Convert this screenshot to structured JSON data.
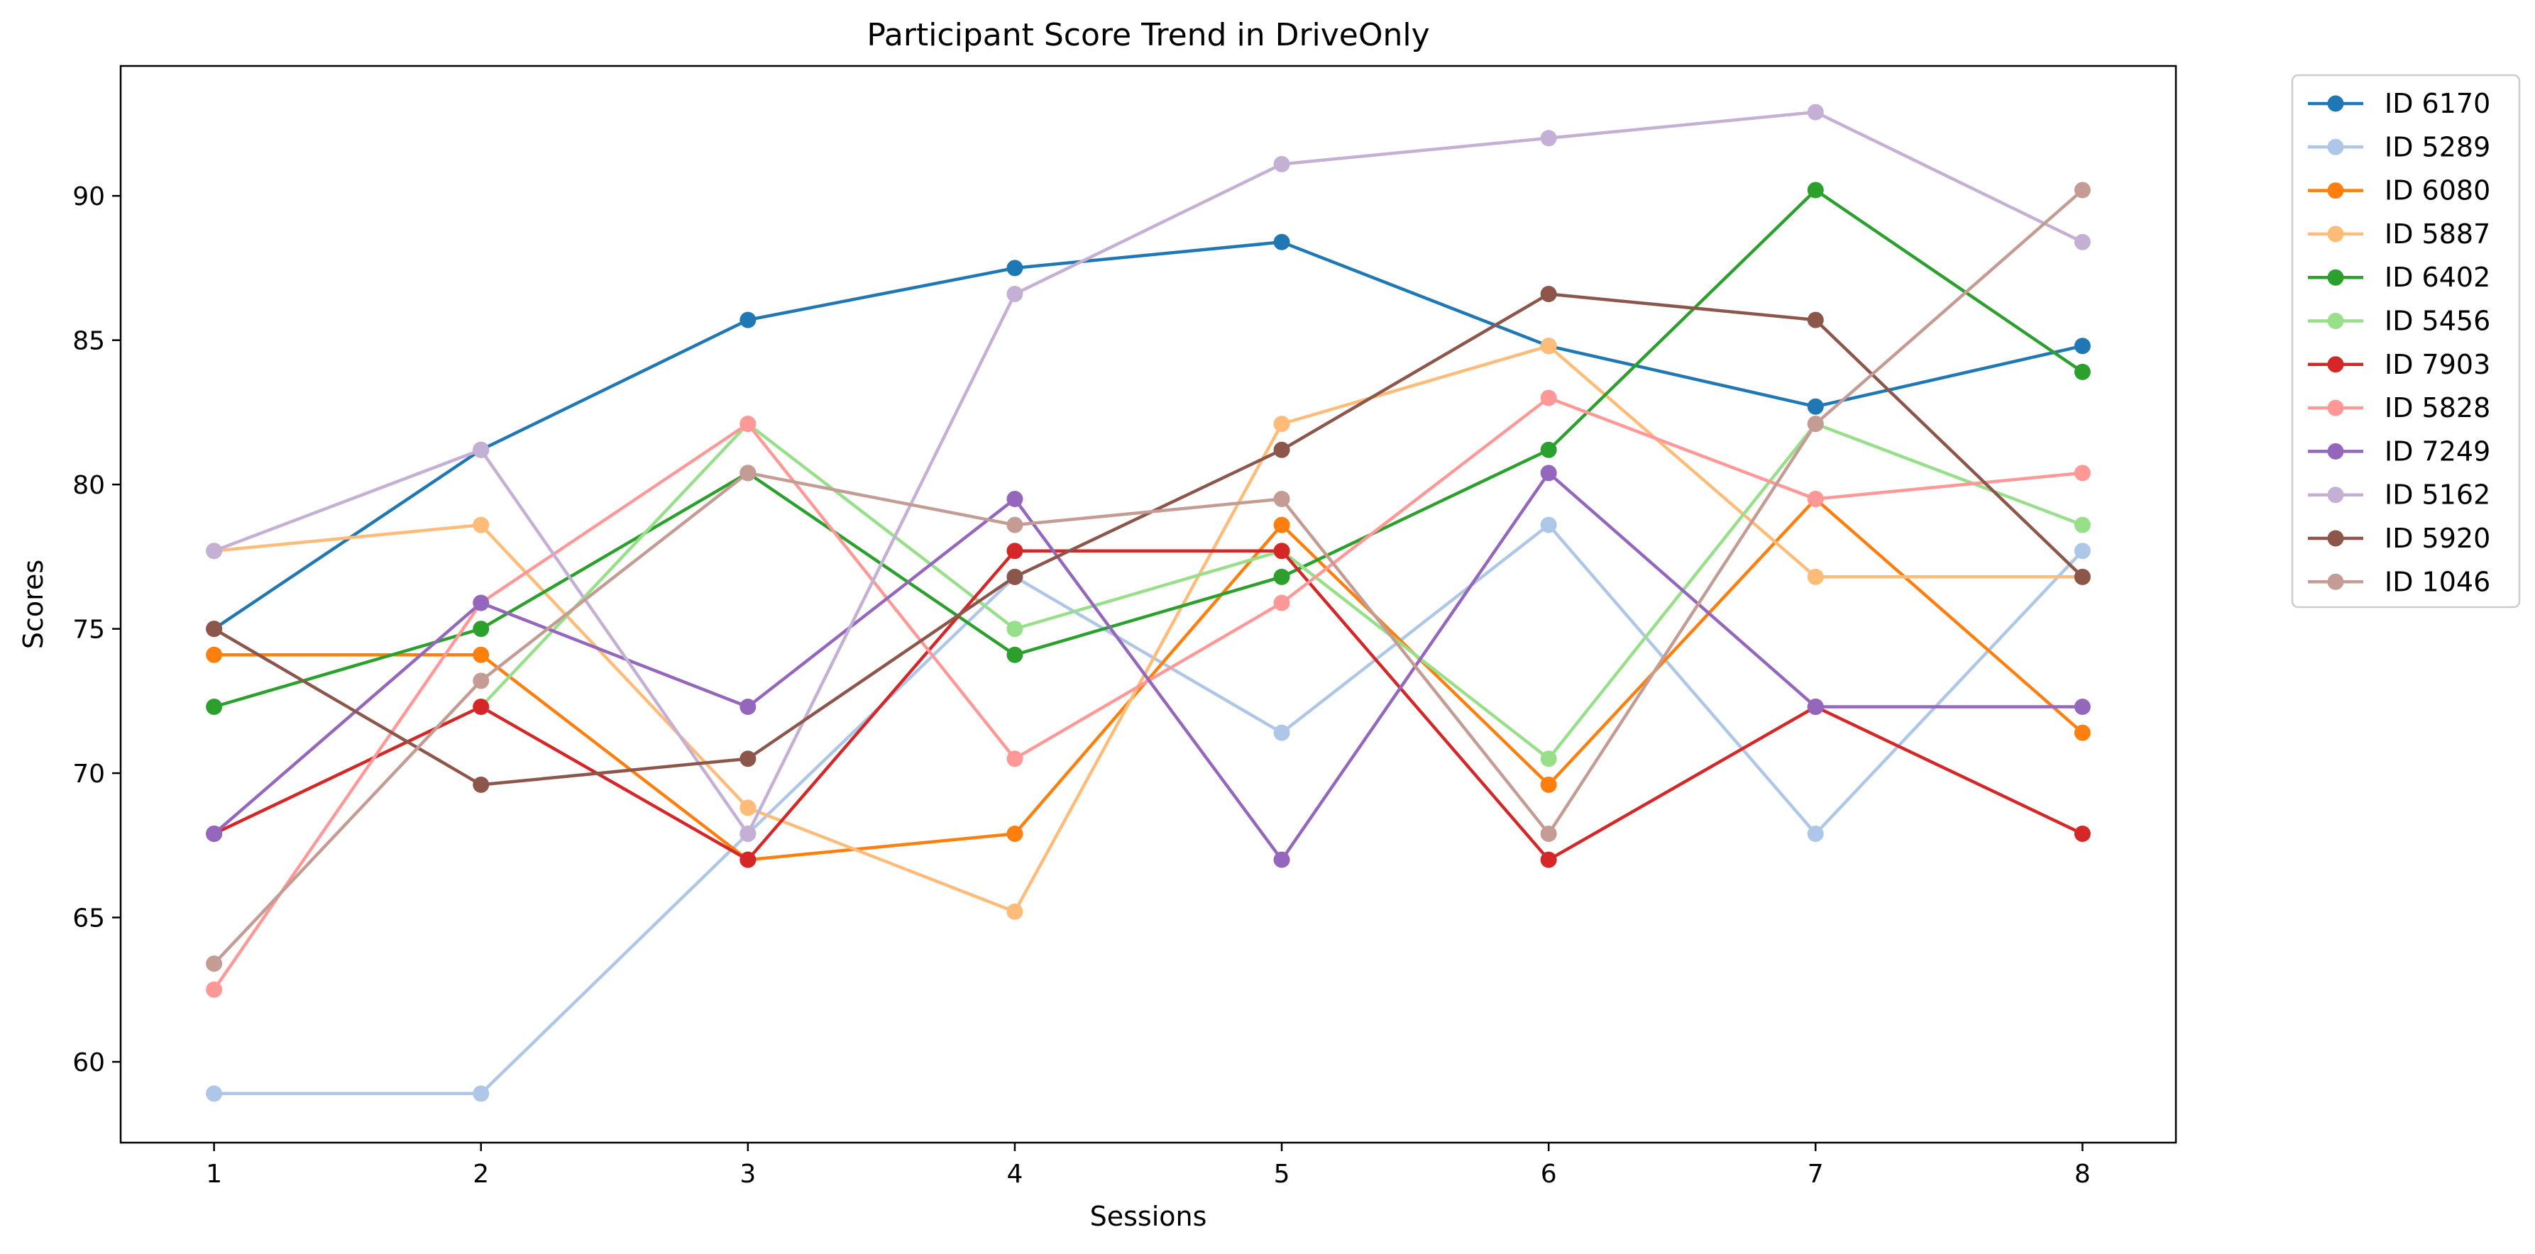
{
  "chart_data": {
    "type": "line",
    "title": "Participant Score Trend in DriveOnly",
    "xlabel": "Sessions",
    "ylabel": "Scores",
    "x": [
      1,
      2,
      3,
      4,
      5,
      6,
      7,
      8
    ],
    "xticks": [
      "1",
      "2",
      "3",
      "4",
      "5",
      "6",
      "7",
      "8"
    ],
    "yticks": [
      "60",
      "65",
      "70",
      "75",
      "80",
      "85",
      "90"
    ],
    "xlim": [
      0.65,
      8.35
    ],
    "ylim": [
      57.2,
      94.5
    ],
    "grid": false,
    "legend_position": "outside-right",
    "series": [
      {
        "name": "ID 6170",
        "color": "#1f77b4",
        "values": [
          75.0,
          81.2,
          85.7,
          87.5,
          88.4,
          84.8,
          82.7,
          84.8
        ]
      },
      {
        "name": "ID 5289",
        "color": "#aec7e8",
        "values": [
          58.9,
          58.9,
          67.9,
          76.8,
          71.4,
          78.6,
          67.9,
          77.7
        ]
      },
      {
        "name": "ID 6080",
        "color": "#ff7f0e",
        "values": [
          74.1,
          74.1,
          67.0,
          67.9,
          78.6,
          69.6,
          79.5,
          71.4
        ]
      },
      {
        "name": "ID 5887",
        "color": "#ffbb78",
        "values": [
          77.7,
          78.6,
          68.8,
          65.2,
          82.1,
          84.8,
          76.8,
          76.8
        ]
      },
      {
        "name": "ID 6402",
        "color": "#2ca02c",
        "values": [
          72.3,
          75.0,
          80.4,
          74.1,
          76.8,
          81.2,
          90.2,
          83.9
        ]
      },
      {
        "name": "ID 5456",
        "color": "#98df8a",
        "values": [
          67.9,
          72.3,
          82.1,
          75.0,
          77.7,
          70.5,
          82.1,
          78.6
        ]
      },
      {
        "name": "ID 7903",
        "color": "#d62728",
        "values": [
          67.9,
          72.3,
          67.0,
          77.7,
          77.7,
          67.0,
          72.3,
          67.9
        ]
      },
      {
        "name": "ID 5828",
        "color": "#ff9896",
        "values": [
          62.5,
          75.9,
          82.1,
          70.5,
          75.9,
          83.0,
          79.5,
          80.4
        ]
      },
      {
        "name": "ID 7249",
        "color": "#9467bd",
        "values": [
          67.9,
          75.9,
          72.3,
          79.5,
          67.0,
          80.4,
          72.3,
          72.3
        ]
      },
      {
        "name": "ID 5162",
        "color": "#c5b0d5",
        "values": [
          77.7,
          81.2,
          67.9,
          86.6,
          91.1,
          92.0,
          92.9,
          88.4
        ]
      },
      {
        "name": "ID 5920",
        "color": "#8c564b",
        "values": [
          75.0,
          69.6,
          70.5,
          76.8,
          81.2,
          86.6,
          85.7,
          76.8
        ]
      },
      {
        "name": "ID 1046",
        "color": "#c49c94",
        "values": [
          63.4,
          73.2,
          80.4,
          78.6,
          79.5,
          67.9,
          82.1,
          90.2
        ]
      }
    ]
  }
}
